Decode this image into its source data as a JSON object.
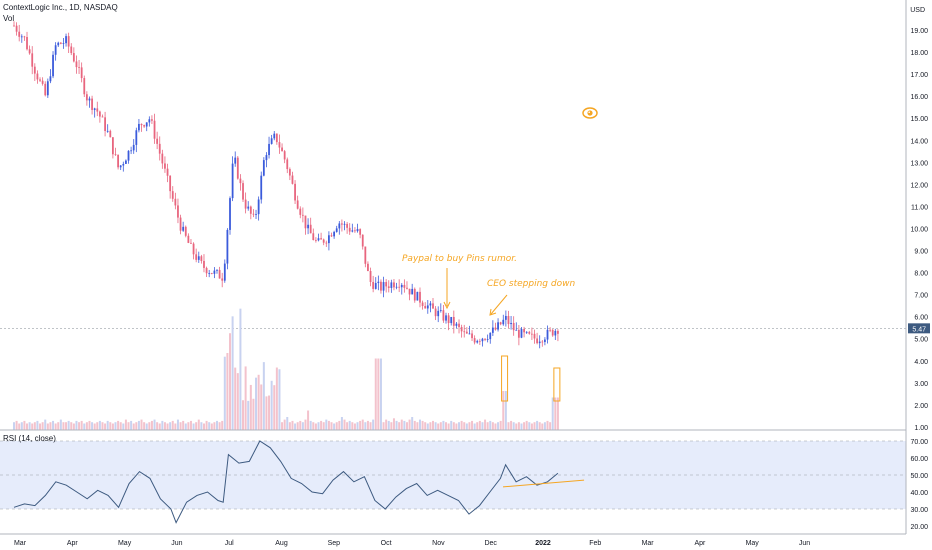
{
  "header": {
    "title": "ContextLogic Inc., 1D, NASDAQ",
    "volume_label": "Vol"
  },
  "rsi_label": "RSI (14, close)",
  "annotations": [
    {
      "text": "Paypal to buy Pins rumor."
    },
    {
      "text": "CEO stepping down"
    }
  ],
  "colors": {
    "up": "#3b5bdb",
    "down": "#e8657e",
    "accent": "#f5a623",
    "rsi_line": "#3d5a80",
    "rsi_fill": "#e6ecfb"
  },
  "chart_data": [
    {
      "type": "candlestick",
      "title": "ContextLogic Inc., 1D, NASDAQ",
      "currency": "USD",
      "current_price": "5.47",
      "x_ticks": [
        "Mar",
        "Apr",
        "May",
        "Jun",
        "Jul",
        "Aug",
        "Sep",
        "Oct",
        "Nov",
        "Dec",
        "2022",
        "Feb",
        "Mar",
        "Apr",
        "May",
        "Jun"
      ],
      "y_ticks": [
        "19.00",
        "18.00",
        "17.00",
        "16.00",
        "15.00",
        "14.00",
        "13.00",
        "12.00",
        "11.00",
        "10.00",
        "9.00",
        "8.00",
        "7.00",
        "6.00",
        "5.00",
        "4.00",
        "3.00",
        "2.00",
        "1.00"
      ],
      "ylim": [
        0.5,
        19.5
      ],
      "close_points": [
        {
          "month": 0.0,
          "close": 19.2
        },
        {
          "month": 0.2,
          "close": 18.6
        },
        {
          "month": 0.4,
          "close": 17.2
        },
        {
          "month": 0.6,
          "close": 16.0
        },
        {
          "month": 0.8,
          "close": 18.3
        },
        {
          "month": 1.0,
          "close": 18.5
        },
        {
          "month": 1.2,
          "close": 17.4
        },
        {
          "month": 1.4,
          "close": 15.9
        },
        {
          "month": 1.6,
          "close": 15.3
        },
        {
          "month": 1.8,
          "close": 14.3
        },
        {
          "month": 2.0,
          "close": 12.7
        },
        {
          "month": 2.2,
          "close": 13.5
        },
        {
          "month": 2.4,
          "close": 14.7
        },
        {
          "month": 2.6,
          "close": 15.0
        },
        {
          "month": 2.8,
          "close": 13.3
        },
        {
          "month": 3.0,
          "close": 11.6
        },
        {
          "month": 3.2,
          "close": 10.0
        },
        {
          "month": 3.4,
          "close": 9.0
        },
        {
          "month": 3.6,
          "close": 8.3
        },
        {
          "month": 3.8,
          "close": 8.0
        },
        {
          "month": 4.0,
          "close": 7.8
        },
        {
          "month": 4.2,
          "close": 13.3
        },
        {
          "month": 4.4,
          "close": 11.2
        },
        {
          "month": 4.6,
          "close": 10.3
        },
        {
          "month": 4.8,
          "close": 13.4
        },
        {
          "month": 5.0,
          "close": 14.2
        },
        {
          "month": 5.2,
          "close": 13.0
        },
        {
          "month": 5.4,
          "close": 11.3
        },
        {
          "month": 5.6,
          "close": 10.0
        },
        {
          "month": 5.8,
          "close": 9.3
        },
        {
          "month": 6.0,
          "close": 9.6
        },
        {
          "month": 6.2,
          "close": 10.3
        },
        {
          "month": 6.4,
          "close": 10.0
        },
        {
          "month": 6.6,
          "close": 9.8
        },
        {
          "month": 6.8,
          "close": 7.6
        },
        {
          "month": 7.0,
          "close": 7.3
        },
        {
          "month": 7.2,
          "close": 7.5
        },
        {
          "month": 7.4,
          "close": 7.6
        },
        {
          "month": 7.6,
          "close": 7.1
        },
        {
          "month": 7.8,
          "close": 6.7
        },
        {
          "month": 8.0,
          "close": 6.3
        },
        {
          "month": 8.2,
          "close": 6.0
        },
        {
          "month": 8.4,
          "close": 5.7
        },
        {
          "month": 8.6,
          "close": 5.2
        },
        {
          "month": 8.8,
          "close": 5.0
        },
        {
          "month": 9.0,
          "close": 5.1
        },
        {
          "month": 9.2,
          "close": 5.4
        },
        {
          "month": 9.4,
          "close": 5.9
        },
        {
          "month": 9.6,
          "close": 5.3
        },
        {
          "month": 9.8,
          "close": 5.1
        },
        {
          "month": 10.0,
          "close": 5.0
        },
        {
          "month": 10.2,
          "close": 5.2
        },
        {
          "month": 10.4,
          "close": 5.47
        }
      ]
    },
    {
      "type": "bar",
      "title": "Vol",
      "description_values_relative": [
        0.06,
        0.07,
        0.05,
        0.06,
        0.07,
        0.05,
        0.06,
        0.05,
        0.06,
        0.07,
        0.05,
        0.06,
        0.08,
        0.05,
        0.06,
        0.07,
        0.05,
        0.06,
        0.08,
        0.06,
        0.06,
        0.07,
        0.06,
        0.05,
        0.07,
        0.06,
        0.07,
        0.05,
        0.06,
        0.07,
        0.06,
        0.05,
        0.06,
        0.07,
        0.06,
        0.05,
        0.07,
        0.06,
        0.05,
        0.06,
        0.07,
        0.06,
        0.05,
        0.08,
        0.06,
        0.07,
        0.05,
        0.06,
        0.07,
        0.08,
        0.06,
        0.05,
        0.06,
        0.07,
        0.08,
        0.06,
        0.05,
        0.07,
        0.06,
        0.05,
        0.06,
        0.07,
        0.05,
        0.08,
        0.06,
        0.07,
        0.05,
        0.06,
        0.07,
        0.05,
        0.06,
        0.08,
        0.06,
        0.05,
        0.07,
        0.06,
        0.05,
        0.06,
        0.07,
        0.06,
        0.07,
        0.06,
        0.05,
        0.06,
        0.07,
        0.08,
        0.06,
        0.05,
        0.07,
        0.06,
        0.05,
        0.06,
        0.07,
        0.06,
        0.05,
        0.06,
        0.07,
        0.08,
        0.06,
        0.07,
        0.05,
        0.06,
        0.07,
        0.06,
        0.08,
        0.1,
        0.06,
        0.07,
        0.05,
        0.06,
        0.07,
        0.06,
        0.08,
        0.15,
        0.07,
        0.06,
        0.05,
        0.06,
        0.07,
        0.06,
        0.08,
        0.07,
        0.06,
        0.05,
        0.06,
        0.07,
        0.1,
        0.08,
        0.06,
        0.07,
        0.06,
        0.05,
        0.06,
        0.07,
        0.08,
        0.06,
        0.07,
        0.06,
        0.08,
        0.07,
        0.06,
        0.07,
        0.06,
        0.08,
        0.07,
        0.06,
        0.09,
        0.07,
        0.06,
        0.08,
        0.07,
        0.06,
        0.08,
        0.1,
        0.07,
        0.06,
        0.08,
        0.07,
        0.06,
        0.05,
        0.06,
        0.07,
        0.06,
        0.05,
        0.06,
        0.07,
        0.06,
        0.05,
        0.07,
        0.06,
        0.05,
        0.06,
        0.07,
        0.06,
        0.05,
        0.06,
        0.07,
        0.05,
        0.06,
        0.07,
        0.06,
        0.08,
        0.06,
        0.07,
        0.06,
        0.05,
        0.06,
        0.07,
        0.06,
        0.05,
        0.06,
        0.07,
        0.06,
        0.05,
        0.06,
        0.05,
        0.06,
        0.07,
        0.06,
        0.05,
        0.06,
        0.07,
        0.06,
        0.05,
        0.06,
        0.07,
        0.06,
        0.05,
        0.06,
        0.07
      ]
    },
    {
      "type": "line",
      "title": "RSI (14, close)",
      "y_ticks": [
        "70.00",
        "60.00",
        "50.00",
        "40.00",
        "30.00",
        "20.00"
      ],
      "ylim": [
        18,
        72
      ],
      "bands": [
        30,
        70
      ],
      "midline": 50,
      "points": [
        {
          "month": 0.0,
          "rsi": 31
        },
        {
          "month": 0.2,
          "rsi": 33
        },
        {
          "month": 0.4,
          "rsi": 32
        },
        {
          "month": 0.6,
          "rsi": 38
        },
        {
          "month": 0.8,
          "rsi": 46
        },
        {
          "month": 1.0,
          "rsi": 44
        },
        {
          "month": 1.2,
          "rsi": 40
        },
        {
          "month": 1.4,
          "rsi": 36
        },
        {
          "month": 1.6,
          "rsi": 41
        },
        {
          "month": 1.8,
          "rsi": 38
        },
        {
          "month": 2.0,
          "rsi": 31
        },
        {
          "month": 2.2,
          "rsi": 45
        },
        {
          "month": 2.4,
          "rsi": 52
        },
        {
          "month": 2.6,
          "rsi": 48
        },
        {
          "month": 2.8,
          "rsi": 36
        },
        {
          "month": 3.0,
          "rsi": 30
        },
        {
          "month": 3.1,
          "rsi": 22
        },
        {
          "month": 3.3,
          "rsi": 34
        },
        {
          "month": 3.5,
          "rsi": 38
        },
        {
          "month": 3.7,
          "rsi": 40
        },
        {
          "month": 3.9,
          "rsi": 35
        },
        {
          "month": 4.0,
          "rsi": 34
        },
        {
          "month": 4.1,
          "rsi": 62
        },
        {
          "month": 4.3,
          "rsi": 57
        },
        {
          "month": 4.5,
          "rsi": 58
        },
        {
          "month": 4.7,
          "rsi": 70
        },
        {
          "month": 4.9,
          "rsi": 66
        },
        {
          "month": 5.1,
          "rsi": 58
        },
        {
          "month": 5.3,
          "rsi": 48
        },
        {
          "month": 5.5,
          "rsi": 45
        },
        {
          "month": 5.7,
          "rsi": 40
        },
        {
          "month": 5.9,
          "rsi": 39
        },
        {
          "month": 6.1,
          "rsi": 47
        },
        {
          "month": 6.3,
          "rsi": 52
        },
        {
          "month": 6.5,
          "rsi": 46
        },
        {
          "month": 6.7,
          "rsi": 49
        },
        {
          "month": 6.9,
          "rsi": 35
        },
        {
          "month": 7.1,
          "rsi": 30
        },
        {
          "month": 7.3,
          "rsi": 37
        },
        {
          "month": 7.5,
          "rsi": 42
        },
        {
          "month": 7.7,
          "rsi": 45
        },
        {
          "month": 7.9,
          "rsi": 38
        },
        {
          "month": 8.1,
          "rsi": 41
        },
        {
          "month": 8.3,
          "rsi": 38
        },
        {
          "month": 8.5,
          "rsi": 35
        },
        {
          "month": 8.7,
          "rsi": 27
        },
        {
          "month": 8.9,
          "rsi": 32
        },
        {
          "month": 9.1,
          "rsi": 40
        },
        {
          "month": 9.3,
          "rsi": 48
        },
        {
          "month": 9.4,
          "rsi": 56
        },
        {
          "month": 9.6,
          "rsi": 46
        },
        {
          "month": 9.8,
          "rsi": 49
        },
        {
          "month": 10.0,
          "rsi": 44
        },
        {
          "month": 10.2,
          "rsi": 46
        },
        {
          "month": 10.4,
          "rsi": 51
        }
      ]
    }
  ]
}
